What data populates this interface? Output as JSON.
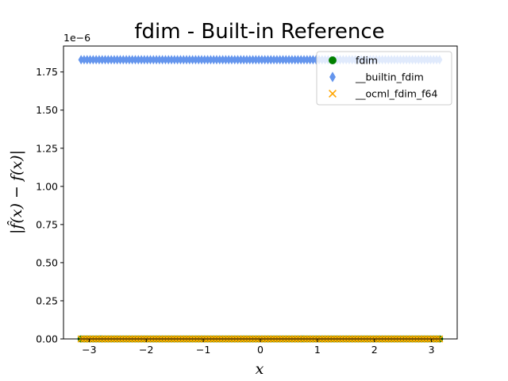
{
  "chart_data": {
    "type": "scatter",
    "title": "fdim - Built-in Reference",
    "xlabel": "x",
    "ylabel": "|f̂(x) − f(x)|",
    "y_offset_label": "1e−6",
    "xlim": [
      -3.45,
      3.45
    ],
    "ylim": [
      0,
      1.92
    ],
    "x_ticks": [
      -3,
      -2,
      -1,
      0,
      1,
      2,
      3
    ],
    "x_tick_labels": [
      "−3",
      "−2",
      "−1",
      "0",
      "1",
      "2",
      "3"
    ],
    "y_ticks": [
      0.0,
      0.25,
      0.5,
      0.75,
      1.0,
      1.25,
      1.5,
      1.75
    ],
    "y_tick_labels": [
      "0.00",
      "0.25",
      "0.50",
      "0.75",
      "1.00",
      "1.25",
      "1.50",
      "1.75"
    ],
    "x_range": [
      -3.14159,
      3.14159
    ],
    "points_per_series": 120,
    "grid": false,
    "legend_position": "top-right",
    "series": [
      {
        "name": "fdim",
        "marker": "circle",
        "color": "#008000",
        "y": 0.0
      },
      {
        "name": "__builtin_fdim",
        "marker": "thin-diamond",
        "color": "#6495ED",
        "y": 1.83
      },
      {
        "name": "__ocml_fdim_f64",
        "marker": "x",
        "color": "#FFA500",
        "y": 0.0
      }
    ]
  }
}
